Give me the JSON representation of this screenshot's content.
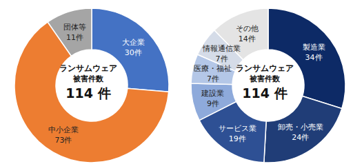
{
  "chart_data": [
    {
      "type": "pie",
      "donut": true,
      "center_text": [
        "ランサムウェア",
        "被害件数"
      ],
      "total": 114,
      "total_label": "114 件",
      "categories": [
        "大企業",
        "中小企業",
        "団体等"
      ],
      "values": [
        30,
        73,
        11
      ],
      "value_labels": [
        "30件",
        "73件",
        "11件"
      ],
      "colors": [
        "#4472c4",
        "#ed7d31",
        "#a5a5a5"
      ],
      "data_labels": true
    },
    {
      "type": "pie",
      "donut": true,
      "center_text": [
        "ランサムウェア",
        "被害件数"
      ],
      "total": 114,
      "total_label": "114 件",
      "categories": [
        "製造業",
        "卸売・小売業",
        "サービス業",
        "建設業",
        "医療・福祉",
        "情報通信業",
        "その他"
      ],
      "values": [
        34,
        24,
        19,
        9,
        7,
        7,
        14
      ],
      "value_labels": [
        "34件",
        "24件",
        "19件",
        "9件",
        "7件",
        "7件",
        "14件"
      ],
      "colors": [
        "#0d2a66",
        "#203d77",
        "#2e5094",
        "#8eaadb",
        "#b4c7e7",
        "#d5dce8",
        "#e4e4e4"
      ],
      "data_labels": true
    }
  ]
}
